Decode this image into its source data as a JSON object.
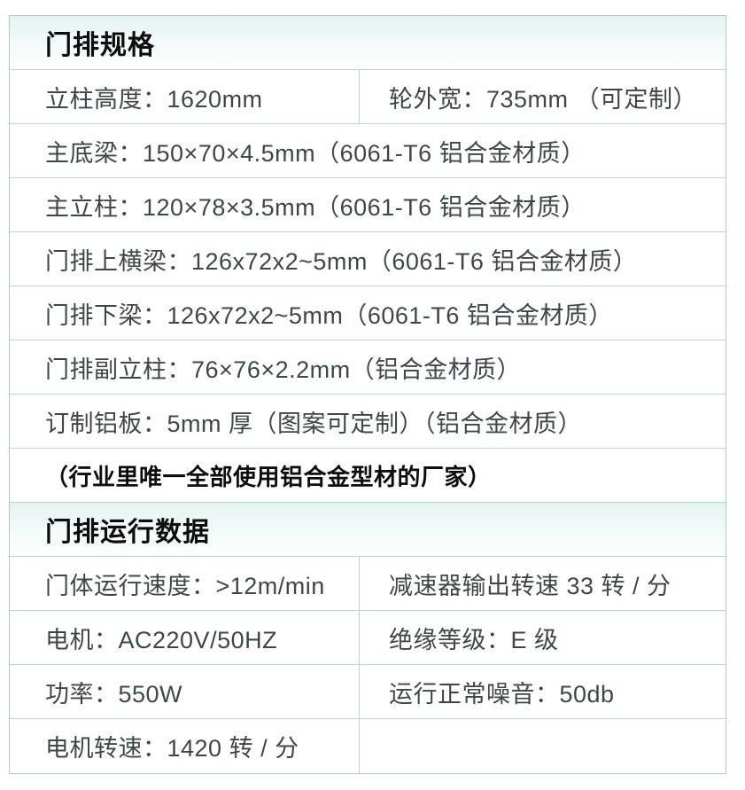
{
  "colors": {
    "border": "#a9cec8",
    "row_divider": "#b9d8d3",
    "header_bg": "#e9f5f3",
    "header_text": "#0d0d0d",
    "body_text": "#3e4747",
    "cell_bg": "#ffffff"
  },
  "table": {
    "sections": [
      {
        "title": "门排规格",
        "rows": [
          {
            "type": "two-col",
            "left": "立柱高度：1620mm",
            "right": "轮外宽：735mm （可定制）"
          },
          {
            "type": "full",
            "text": "主底梁：150×70×4.5mm（6061-T6 铝合金材质）"
          },
          {
            "type": "full",
            "text": "主立柱：120×78×3.5mm（6061-T6 铝合金材质）"
          },
          {
            "type": "full",
            "text": "门排上横梁：126x72x2~5mm（6061-T6 铝合金材质）"
          },
          {
            "type": "full",
            "text": "门排下梁：126x72x2~5mm（6061-T6 铝合金材质）"
          },
          {
            "type": "full",
            "text": "门排副立柱：76×76×2.2mm（铝合金材质）"
          },
          {
            "type": "full",
            "text": "订制铝板：5mm 厚（图案可定制）（铝合金材质）"
          },
          {
            "type": "full-bold",
            "text": "（行业里唯一全部使用铝合金型材的厂家）"
          }
        ]
      },
      {
        "title": "门排运行数据",
        "rows": [
          {
            "type": "two-col",
            "left": "门体运行速度：>12m/min",
            "right": "减速器输出转速 33 转 / 分"
          },
          {
            "type": "two-col",
            "left": "电机：AC220V/50HZ",
            "right": "绝缘等级：E 级"
          },
          {
            "type": "two-col",
            "left": "功率：550W",
            "right": "运行正常噪音：50db"
          },
          {
            "type": "two-col",
            "left": "电机转速：1420 转 / 分",
            "right": ""
          }
        ]
      }
    ]
  }
}
